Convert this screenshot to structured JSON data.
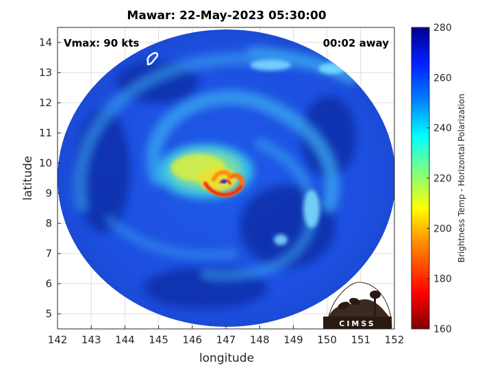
{
  "title": "Mawar: 22-May-2023 05:30:00",
  "annotations": {
    "vmax": "Vmax: 90 kts",
    "time_away": "00:02 away"
  },
  "xaxis": {
    "label": "longitude",
    "min": 142,
    "max": 152,
    "ticks": [
      "142",
      "143",
      "144",
      "145",
      "146",
      "147",
      "148",
      "149",
      "150",
      "151",
      "152"
    ]
  },
  "yaxis": {
    "label": "latitude",
    "min": 4.5,
    "max": 14.5,
    "ticks": [
      "5",
      "6",
      "7",
      "8",
      "9",
      "10",
      "11",
      "12",
      "13",
      "14"
    ]
  },
  "colorbar": {
    "label": "Brightness Temp - Horizontal Polarization",
    "min": 160,
    "max": 280,
    "ticks": [
      "160",
      "180",
      "200",
      "220",
      "240",
      "260",
      "280"
    ]
  },
  "logo": {
    "text": "CIMSS"
  },
  "storm": {
    "center_lon": 146.8,
    "center_lat": 9.3
  },
  "colors": {
    "background_blue": "#1e4fe0",
    "dark_blue": "#0b2e9e",
    "eye_red": "#e02010"
  }
}
